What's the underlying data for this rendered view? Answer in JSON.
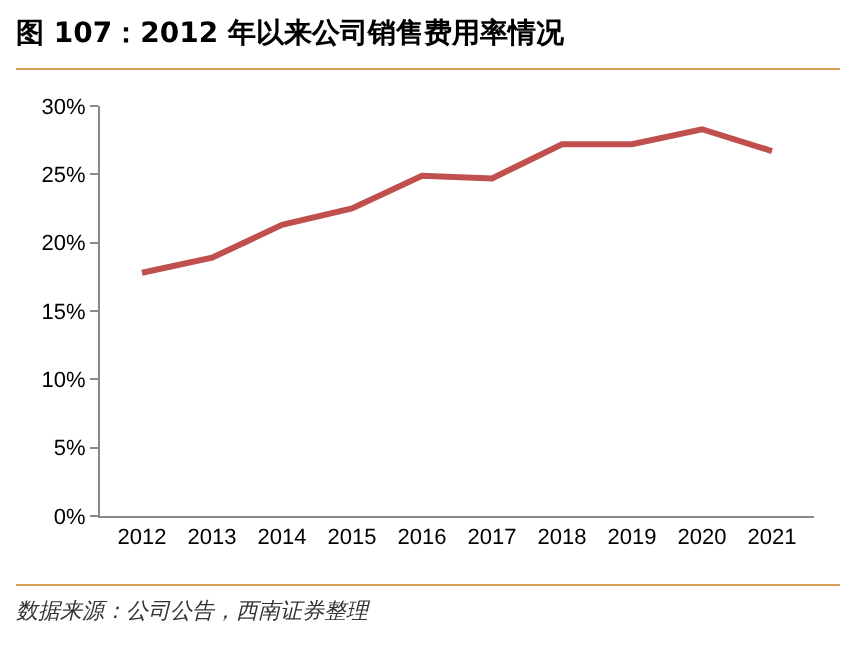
{
  "chart_data": {
    "type": "line",
    "title": "图 107：2012 年以来公司销售费用率情况",
    "annotations": [
      "数据来源：公司公告，西南证券整理"
    ],
    "categories": [
      "2012",
      "2013",
      "2014",
      "2015",
      "2016",
      "2017",
      "2018",
      "2019",
      "2020",
      "2021"
    ],
    "series": [
      {
        "color": "#c0504d",
        "values": [
          17.8,
          18.9,
          21.3,
          22.5,
          24.9,
          24.7,
          27.2,
          27.2,
          28.3,
          26.7
        ]
      }
    ],
    "ylim": [
      0,
      30
    ],
    "yticks": [
      {
        "value": 0,
        "label": "0%"
      },
      {
        "value": 5,
        "label": "5%"
      },
      {
        "value": 10,
        "label": "10%"
      },
      {
        "value": 15,
        "label": "15%"
      },
      {
        "value": 20,
        "label": "20%"
      },
      {
        "value": 25,
        "label": "25%"
      },
      {
        "value": 30,
        "label": "30%"
      }
    ],
    "marker": "none",
    "line_style": "solid"
  }
}
